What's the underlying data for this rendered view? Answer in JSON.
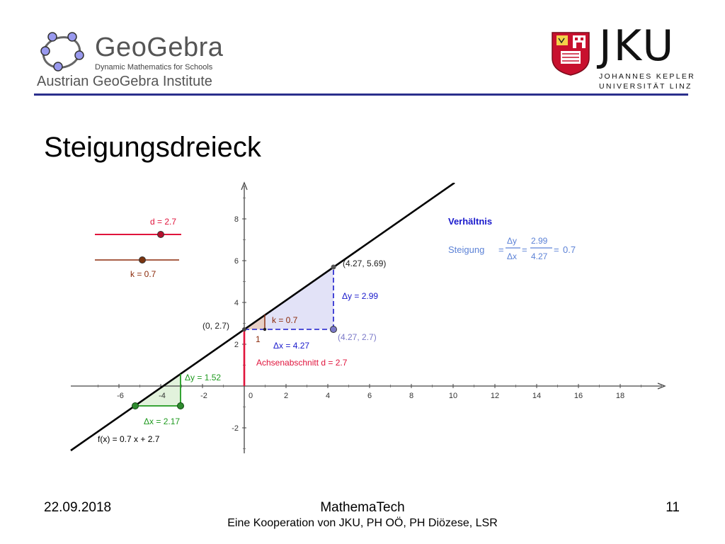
{
  "header": {
    "geogebra": {
      "name": "GeoGebra",
      "tagline": "Dynamic Mathematics for Schools",
      "institute": "Austrian GeoGebra Institute"
    },
    "jku": {
      "name": "JKU",
      "line1": "JOHANNES KEPLER",
      "line2": "UNIVERSITÄT LINZ"
    }
  },
  "title": "Steigungsdreieck",
  "graph": {
    "function_label": "f(x) = 0.7 x + 2.7",
    "slider_d_label": "d = 2.7",
    "slider_k_label": "k = 0.7",
    "point_intercept_label": "(0, 2.7)",
    "point_top_label": "(4.27, 5.69)",
    "point_corner_label": "(4.27, 2.7)",
    "small_triangle_k": "k = 0.7",
    "small_triangle_one": "1",
    "dy_big": "Δy = 2.99",
    "dx_big": "Δx = 4.27",
    "intercept_text": "Achsenabschnitt d = 2.7",
    "dy_green": "Δy = 1.52",
    "dx_green": "Δx = 2.17",
    "ratio_heading": "Verhältnis",
    "ratio_word": "Steigung",
    "ratio_dy": "Δy",
    "ratio_dx": "Δx",
    "ratio_num": "2.99",
    "ratio_den": "4.27",
    "ratio_result": "0.7",
    "x_ticks": [
      "-6",
      "-4",
      "-2",
      "0",
      "2",
      "4",
      "6",
      "8",
      "10",
      "12",
      "14",
      "16",
      "18"
    ],
    "y_ticks": [
      "-2",
      "2",
      "4",
      "6",
      "8"
    ],
    "colors": {
      "line": "#000000",
      "intercept": "#e0143c",
      "slope_slider": "#8b2a0a",
      "big_triangle": "#1a1acc",
      "big_triangle_fill": "#e2e2f7",
      "green": "#1f9a1f",
      "green_fill": "#e2f2dc",
      "corner_point": "#7a78c8"
    }
  },
  "chart_data": {
    "type": "line",
    "x_axis": {
      "range": [
        -8.2,
        20
      ],
      "ticks": [
        -6,
        -4,
        -2,
        0,
        2,
        4,
        6,
        8,
        10,
        12,
        14,
        16,
        18
      ]
    },
    "y_axis": {
      "range": [
        -3.2,
        9.7
      ],
      "ticks": [
        -2,
        0,
        2,
        4,
        6,
        8
      ]
    },
    "series": [
      {
        "name": "f(x) = 0.7 x + 2.7",
        "slope": 0.7,
        "intercept": 2.7
      }
    ],
    "points": [
      {
        "x": 0,
        "y": 2.7
      },
      {
        "x": 4.27,
        "y": 5.69
      },
      {
        "x": 4.27,
        "y": 2.7
      }
    ],
    "sliders": [
      {
        "name": "d",
        "value": 2.7
      },
      {
        "name": "k",
        "value": 0.7
      }
    ],
    "slope_triangles": [
      {
        "x0": 0,
        "y0": 2.7,
        "dx": 4.27,
        "dy": 2.99
      },
      {
        "x0": 0,
        "y0": 2.7,
        "dx": 1,
        "dy": 0.7
      },
      {
        "x0": -5.3,
        "y0": -0.99,
        "dx": 2.17,
        "dy": 1.52
      }
    ],
    "grid": false
  },
  "footer": {
    "date": "22.09.2018",
    "title": "MathemaTech",
    "subtitle": "Eine Kooperation von JKU, PH OÖ, PH Diözese, LSR",
    "page": "11"
  }
}
